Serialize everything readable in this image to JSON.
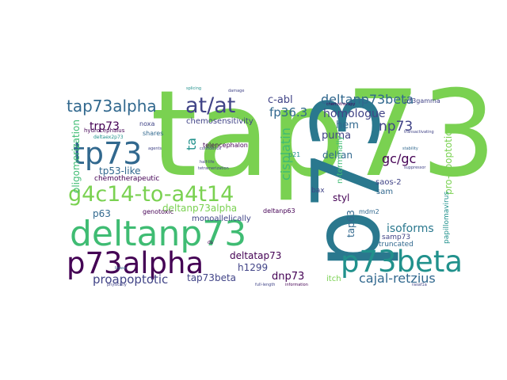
{
  "colors": {
    "green": "#7ad151",
    "teal": "#2a788e",
    "mint": "#3fbc73",
    "navy": "#414487",
    "purple": "#440154",
    "blue": "#355f8d",
    "cyan": "#21918c",
    "lime": "#bddf26",
    "yellow": "#fde725",
    "dark": "#31688e"
  },
  "words": [
    {
      "text": "tap73",
      "color": "green"
    },
    {
      "text": "p73",
      "color": "teal"
    },
    {
      "text": "deltanp73",
      "color": "mint"
    },
    {
      "text": "p73alpha",
      "color": "purple"
    },
    {
      "text": "p73beta",
      "color": "cyan"
    },
    {
      "text": "g4c14-to-a4t14",
      "color": "green"
    },
    {
      "text": "tp73",
      "color": "dark"
    },
    {
      "text": "tap73alpha",
      "color": "dark"
    },
    {
      "text": "at/at",
      "color": "navy"
    },
    {
      "text": "c-abl",
      "color": "navy"
    },
    {
      "text": "deltanp73beta",
      "color": "dark"
    },
    {
      "text": "trp73",
      "color": "purple"
    },
    {
      "text": "tp53-like",
      "color": "dark"
    },
    {
      "text": "chemosensitivity",
      "color": "navy"
    },
    {
      "text": "telencephalon",
      "color": "purple"
    },
    {
      "text": "fp36.3",
      "color": "dark"
    },
    {
      "text": "homologue",
      "color": "navy"
    },
    {
      "text": "hem",
      "color": "dark"
    },
    {
      "text": "np73",
      "color": "navy"
    },
    {
      "text": "gc/gc",
      "color": "purple"
    },
    {
      "text": "puma",
      "color": "navy"
    },
    {
      "text": "deltan",
      "color": "dark"
    },
    {
      "text": "cisplatin",
      "color": "mint"
    },
    {
      "text": "deltanp73alpha",
      "color": "green"
    },
    {
      "text": "chemotherapeutic",
      "color": "purple"
    },
    {
      "text": "genotoxic",
      "color": "purple"
    },
    {
      "text": "noxa",
      "color": "navy"
    },
    {
      "text": "shares",
      "color": "dark"
    },
    {
      "text": "hydrocephalus",
      "color": "purple"
    },
    {
      "text": "deltaex2p73",
      "color": "cyan"
    },
    {
      "text": "p63",
      "color": "dark"
    },
    {
      "text": "monoallelically",
      "color": "navy"
    },
    {
      "text": "deltanp63",
      "color": "purple"
    },
    {
      "text": "bax",
      "color": "navy"
    },
    {
      "text": "deltatap73",
      "color": "purple"
    },
    {
      "text": "h1299",
      "color": "navy"
    },
    {
      "text": "dnp73",
      "color": "purple"
    },
    {
      "text": "proapoptotic",
      "color": "navy"
    },
    {
      "text": "tap73beta",
      "color": "navy"
    },
    {
      "text": "cajal-retzius",
      "color": "dark"
    },
    {
      "text": "itch",
      "color": "green"
    },
    {
      "text": "isoforms",
      "color": "teal"
    },
    {
      "text": "styl",
      "color": "purple"
    },
    {
      "text": "sam",
      "color": "dark"
    },
    {
      "text": "saos-2",
      "color": "navy"
    },
    {
      "text": "mdm2",
      "color": "dark"
    },
    {
      "text": "samp73",
      "color": "navy"
    },
    {
      "text": "truncated",
      "color": "dark"
    },
    {
      "text": "pro-apoptotic",
      "color": "green"
    },
    {
      "text": "oligomerization",
      "color": "mint"
    },
    {
      "text": "n-terminally",
      "color": "mint"
    },
    {
      "text": "tap63",
      "color": "dark"
    },
    {
      "text": "papillomavirus",
      "color": "cyan"
    },
    {
      "text": "p73gamma",
      "color": "navy"
    },
    {
      "text": "chemotherapy",
      "color": "purple"
    },
    {
      "text": "ta",
      "color": "cyan"
    },
    {
      "text": "p21",
      "color": "cyan"
    },
    {
      "text": "agents",
      "color": "navy"
    },
    {
      "text": "confidence",
      "color": "navy"
    },
    {
      "text": "half-life",
      "color": "navy"
    },
    {
      "text": "tetramerization",
      "color": "navy"
    },
    {
      "text": "ds",
      "color": "purple"
    },
    {
      "text": "stability",
      "color": "dark"
    },
    {
      "text": "suppressor",
      "color": "navy"
    },
    {
      "text": "ligase",
      "color": "dark"
    },
    {
      "text": "physically",
      "color": "navy"
    },
    {
      "text": "full-length",
      "color": "navy"
    },
    {
      "text": "information",
      "color": "purple"
    },
    {
      "text": "damage",
      "color": "navy"
    },
    {
      "text": "splicing",
      "color": "cyan"
    },
    {
      "text": "rasaf1a",
      "color": "navy"
    },
    {
      "text": "transactivating",
      "color": "navy"
    }
  ]
}
